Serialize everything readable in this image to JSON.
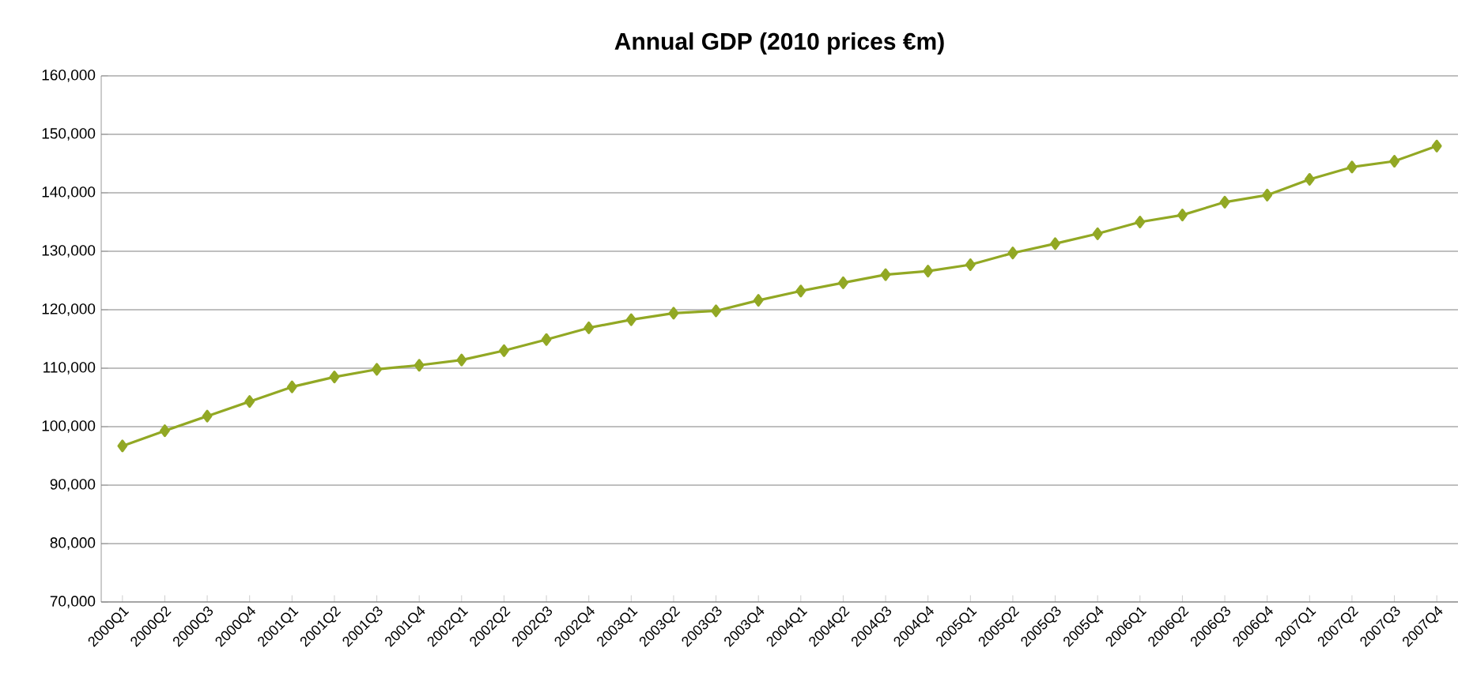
{
  "chart_data": {
    "type": "line",
    "title": "Annual GDP (2010 prices €m)",
    "categories": [
      "2000Q1",
      "2000Q2",
      "2000Q3",
      "2000Q4",
      "2001Q1",
      "2001Q2",
      "2001Q3",
      "2001Q4",
      "2002Q1",
      "2002Q2",
      "2002Q3",
      "2002Q4",
      "2003Q1",
      "2003Q2",
      "2003Q3",
      "2003Q4",
      "2004Q1",
      "2004Q2",
      "2004Q3",
      "2004Q4",
      "2005Q1",
      "2005Q2",
      "2005Q3",
      "2005Q4",
      "2006Q1",
      "2006Q2",
      "2006Q3",
      "2006Q4",
      "2007Q1",
      "2007Q2",
      "2007Q3",
      "2007Q4"
    ],
    "series": [
      {
        "color": "#92a824",
        "values": [
          96700,
          99300,
          101800,
          104300,
          106800,
          108500,
          109800,
          110500,
          111400,
          113000,
          114900,
          116900,
          118300,
          119400,
          119800,
          121600,
          123200,
          124600,
          126000,
          126600,
          127700,
          129700,
          131300,
          133000,
          135000,
          136200,
          138400,
          139600,
          142300,
          144400,
          145400,
          148000
        ]
      }
    ],
    "ylim": [
      70000,
      160000
    ],
    "yticks": [
      {
        "value": 70000,
        "label": "70,000"
      },
      {
        "value": 80000,
        "label": "80,000"
      },
      {
        "value": 90000,
        "label": "90,000"
      },
      {
        "value": 100000,
        "label": "100,000"
      },
      {
        "value": 110000,
        "label": "110,000"
      },
      {
        "value": 120000,
        "label": "120,000"
      },
      {
        "value": 130000,
        "label": "130,000"
      },
      {
        "value": 140000,
        "label": "140,000"
      },
      {
        "value": 150000,
        "label": "150,000"
      },
      {
        "value": 160000,
        "label": "160,000"
      }
    ],
    "grid": "y",
    "marker": "diamond",
    "line_style": "solid"
  }
}
